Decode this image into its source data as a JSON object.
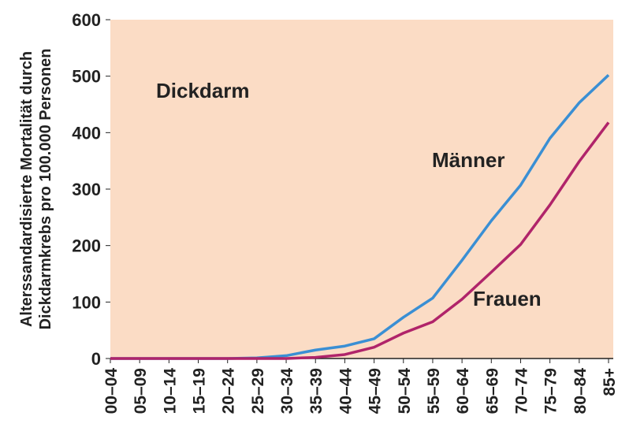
{
  "chart_data": {
    "type": "line",
    "y_label": [
      "Alterssandardisierte Mortalität durch",
      "Dickdarmkrebs pro 100.000 Personen"
    ],
    "annotation": "Dickdarm",
    "categories": [
      "00–04",
      "05–09",
      "10–14",
      "15–19",
      "20–24",
      "25–29",
      "30–34",
      "35–39",
      "40–44",
      "45–49",
      "50–54",
      "55–59",
      "60–64",
      "65–69",
      "70–74",
      "75–79",
      "80–84",
      "85+"
    ],
    "series": [
      {
        "name": "Männer",
        "color": "#3a8fd4",
        "values": [
          0,
          0,
          0,
          0,
          0,
          1,
          5,
          15,
          22,
          35,
          73,
          107,
          174,
          244,
          307,
          390,
          453,
          502
        ]
      },
      {
        "name": "Frauen",
        "color": "#b0246a",
        "values": [
          0,
          0,
          0,
          0,
          0,
          0,
          0,
          2,
          7,
          20,
          45,
          65,
          105,
          153,
          202,
          272,
          349,
          418
        ]
      }
    ],
    "ylim": [
      0,
      600
    ],
    "yticks": [
      0,
      100,
      200,
      300,
      400,
      500,
      600
    ],
    "background": "#fbdcc5"
  }
}
